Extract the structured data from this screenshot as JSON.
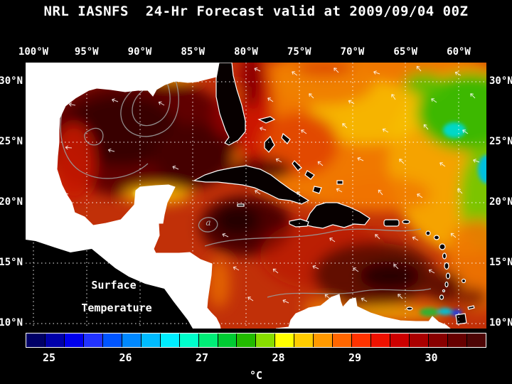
{
  "title": "NRL IASNFS  24-Hr Forecast valid at 2009/09/04 00Z",
  "map": {
    "top_axis": [
      "100°W",
      "95°W",
      "90°W",
      "85°W",
      "80°W",
      "75°W",
      "70°W",
      "65°W",
      "60°W"
    ],
    "left_axis": [
      "30°N",
      "25°N",
      "20°N",
      "15°N",
      "10°N"
    ],
    "right_axis": [
      "30°N",
      "25°N",
      "20°N",
      "15°N",
      "10°N"
    ],
    "overlay": {
      "line1": "Surface",
      "line2": "Temperature"
    },
    "contour_label": "a"
  },
  "colorbar": {
    "tick_labels": [
      "25",
      "26",
      "27",
      "28",
      "29",
      "30"
    ],
    "unit": "°C",
    "colors": [
      "#000066",
      "#0000aa",
      "#0000ee",
      "#2233ff",
      "#0055ff",
      "#0088ff",
      "#00bbff",
      "#00eeff",
      "#00ffcc",
      "#00ee77",
      "#00cc33",
      "#22bb00",
      "#88dd00",
      "#ffff00",
      "#ffcc00",
      "#ff9900",
      "#ff6600",
      "#ff3300",
      "#ee1100",
      "#cc0000",
      "#aa0000",
      "#880000",
      "#660000",
      "#4d0505"
    ]
  }
}
